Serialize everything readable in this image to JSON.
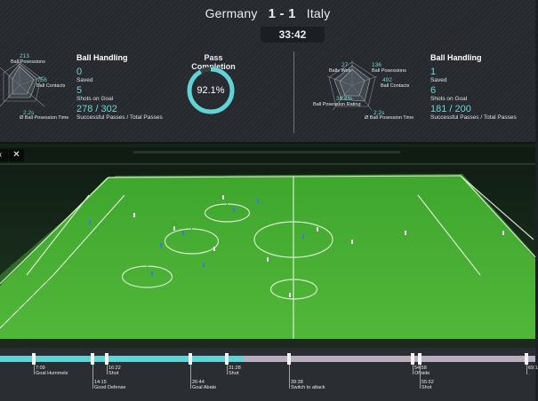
{
  "match": {
    "home_team": "Germany",
    "away_team": "Italy",
    "score": "1 - 1",
    "clock": "33:42"
  },
  "home": {
    "radar": [
      {
        "value": "213",
        "label": "Ball Posessions"
      },
      {
        "value": "756",
        "label": "Ball Contacts"
      },
      {
        "value": "2.2s",
        "label": "Ø Ball Posession Time"
      }
    ],
    "heading": "Ball Handling",
    "stats": [
      {
        "value": "0",
        "label": "Saved"
      },
      {
        "value": "5",
        "label": "Shots on Goal"
      },
      {
        "value": "278 / 302",
        "label": "Successful Passes / Total Passes"
      }
    ]
  },
  "pass_completion": {
    "title": "Pass Completion",
    "value_text": "92.1%",
    "fraction": 0.921,
    "color": "#5fd3d6"
  },
  "away": {
    "radar": [
      {
        "value": "27",
        "label": "Balls Won"
      },
      {
        "value": "136",
        "label": "Ball Posessions"
      },
      {
        "value": "492",
        "label": "Ball Contacts"
      },
      {
        "value": "38.8%",
        "label": "Ball Posession Rating"
      },
      {
        "value": "2.2s",
        "label": "Ø Ball Posession Time"
      }
    ],
    "heading": "Ball Handling",
    "stats": [
      {
        "value": "1",
        "label": "Saved"
      },
      {
        "value": "6",
        "label": "Shots on Goal"
      },
      {
        "value": "181 / 200",
        "label": "Successful Passes / Total Passes"
      }
    ]
  },
  "controls": {
    "back_icon": "chevron-left-icon",
    "close_icon": "close-icon",
    "close_glyph": "✕"
  },
  "timeline": {
    "progress": 0.455,
    "events": [
      {
        "time": "7:09",
        "label": "Goal Hummels"
      },
      {
        "time": "14:15",
        "label": "Good Defense"
      },
      {
        "time": "16:22",
        "label": "Shot"
      },
      {
        "time": "26:44",
        "label": "Goal Abate"
      },
      {
        "time": "31:28",
        "label": "Shot"
      },
      {
        "time": "39:38",
        "label": "Switch to attack"
      },
      {
        "time": "54:58",
        "label": "Offside"
      },
      {
        "time": "55:52",
        "label": "Shot"
      },
      {
        "time": "69:1",
        "label": ""
      }
    ]
  }
}
